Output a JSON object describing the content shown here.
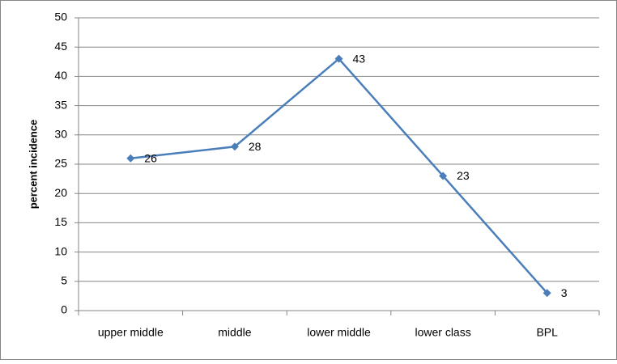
{
  "chart_data": {
    "type": "line",
    "y_label": "percent incidence",
    "categories": [
      "upper middle",
      "middle",
      "lower middle",
      "lower class",
      "BPL"
    ],
    "values": [
      26,
      28,
      43,
      23,
      3
    ],
    "color": "#4a7ebb",
    "ylim": [
      0,
      50
    ],
    "yticks": [
      0,
      5,
      10,
      15,
      20,
      25,
      30,
      35,
      40,
      45,
      50
    ],
    "grid": true
  }
}
